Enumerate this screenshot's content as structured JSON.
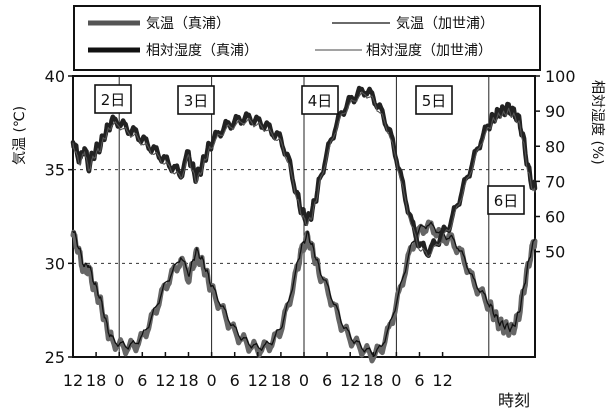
{
  "chart_data": {
    "type": "line",
    "title": "",
    "xlabel": "時刻",
    "ylabel_left": "気温 (℃)",
    "ylabel_right": "相対湿度 (%)",
    "ylim_left": [
      25,
      40
    ],
    "ylim_right": [
      20,
      100
    ],
    "yticks_left": [
      25,
      30,
      35,
      40
    ],
    "yticks_right": [
      50,
      60,
      70,
      80,
      90,
      100
    ],
    "x_hours_range": [
      12,
      132
    ],
    "xtick_labels": [
      "12",
      "18",
      "0",
      "6",
      "12",
      "18",
      "0",
      "6",
      "12",
      "18",
      "0",
      "6",
      "12",
      "18",
      "0",
      "6",
      "12"
    ],
    "grid": "dotted horizontal at 30 and 35 ℃",
    "legend": {
      "placement": "top",
      "entries": [
        "気温（真浦）",
        "気温（加世浦）",
        "相対湿度（真浦）",
        "相対湿度（加世浦）"
      ]
    },
    "day_labels": [
      {
        "text": "2日",
        "hour": 24
      },
      {
        "text": "3日",
        "hour": 48
      },
      {
        "text": "4日",
        "hour": 72
      },
      {
        "text": "5日",
        "hour": 96
      },
      {
        "text": "6日",
        "hour": 120
      }
    ],
    "series": [
      {
        "name": "気温（真浦）",
        "axis": "left",
        "x": [
          12,
          13,
          14,
          15,
          16,
          17,
          18,
          19,
          20,
          21,
          22,
          24,
          26,
          28,
          30,
          32,
          34,
          36,
          38,
          40,
          42,
          43,
          44,
          45,
          46,
          47,
          48,
          50,
          52,
          54,
          56,
          58,
          60,
          62,
          64,
          66,
          68,
          70,
          71,
          72,
          73,
          74,
          75,
          76,
          78,
          80,
          82,
          84,
          86,
          88,
          90,
          92,
          94,
          96,
          98,
          100,
          102,
          104,
          106,
          108,
          110,
          112,
          114,
          116,
          118,
          120,
          121,
          122,
          123,
          124,
          125,
          126,
          127,
          128,
          129,
          130,
          131,
          132
        ],
        "values": [
          31.5,
          31.0,
          30.2,
          29.5,
          29.8,
          29.0,
          28.5,
          28.0,
          27.2,
          26.4,
          25.9,
          25.6,
          25.5,
          25.6,
          26.0,
          26.8,
          27.8,
          28.8,
          29.5,
          30.2,
          29.2,
          29.8,
          30.5,
          30.2,
          29.8,
          29.2,
          28.6,
          27.8,
          27.0,
          26.3,
          25.9,
          25.6,
          25.4,
          25.5,
          25.8,
          26.5,
          27.8,
          29.5,
          30.4,
          31.0,
          31.4,
          30.8,
          30.2,
          29.5,
          28.6,
          27.6,
          26.6,
          26.0,
          25.6,
          25.3,
          25.1,
          25.4,
          26.4,
          27.8,
          29.4,
          30.9,
          31.7,
          32.0,
          31.8,
          31.4,
          31.3,
          30.8,
          30.0,
          29.0,
          28.4,
          27.8,
          27.4,
          27.0,
          26.7,
          26.6,
          26.5,
          26.4,
          26.8,
          27.4,
          28.5,
          29.6,
          30.6,
          31.2
        ]
      },
      {
        "name": "気温（加世浦）",
        "axis": "left",
        "x": [
          12,
          13,
          14,
          15,
          16,
          17,
          18,
          19,
          20,
          21,
          22,
          24,
          26,
          28,
          30,
          32,
          34,
          36,
          38,
          40,
          42,
          43,
          44,
          45,
          46,
          47,
          48,
          50,
          52,
          54,
          56,
          58,
          60,
          62,
          64,
          66,
          68,
          70,
          71,
          72,
          73,
          74,
          75,
          76,
          78,
          80,
          82,
          84,
          86,
          88,
          90,
          92,
          94,
          96,
          98,
          100,
          102,
          104,
          106,
          108,
          110,
          112,
          114,
          116,
          118,
          120,
          121,
          122,
          123,
          124,
          125,
          126,
          127,
          128,
          129,
          130,
          131,
          132
        ],
        "values": [
          31.8,
          31.2,
          30.5,
          29.8,
          30.0,
          29.3,
          28.7,
          28.2,
          27.4,
          26.5,
          26.0,
          25.7,
          25.6,
          25.7,
          26.1,
          26.9,
          27.9,
          28.9,
          29.6,
          30.4,
          29.4,
          30.0,
          30.7,
          30.4,
          30.0,
          29.4,
          28.8,
          28.0,
          27.2,
          26.5,
          26.0,
          25.7,
          25.5,
          25.6,
          25.9,
          26.6,
          27.9,
          29.7,
          30.6,
          31.2,
          31.6,
          31.0,
          30.4,
          29.7,
          28.8,
          27.8,
          26.8,
          26.1,
          25.7,
          25.4,
          25.2,
          25.5,
          26.5,
          27.9,
          29.5,
          31.0,
          31.8,
          32.1,
          31.9,
          31.5,
          31.4,
          30.9,
          30.1,
          29.1,
          28.5,
          27.9,
          27.5,
          27.1,
          26.8,
          26.7,
          26.6,
          26.5,
          26.9,
          27.5,
          28.6,
          29.7,
          30.7,
          31.3
        ]
      },
      {
        "name": "相対湿度（真浦）",
        "axis": "right",
        "x": [
          12,
          13,
          14,
          15,
          16,
          17,
          18,
          19,
          20,
          21,
          22,
          24,
          26,
          28,
          30,
          32,
          34,
          36,
          38,
          40,
          42,
          43,
          44,
          45,
          46,
          47,
          48,
          50,
          52,
          54,
          56,
          58,
          60,
          62,
          64,
          66,
          68,
          70,
          71,
          72,
          73,
          74,
          75,
          76,
          78,
          80,
          82,
          84,
          86,
          88,
          90,
          92,
          94,
          96,
          98,
          100,
          102,
          104,
          106,
          108,
          110,
          112,
          114,
          116,
          118,
          120,
          121,
          122,
          123,
          124,
          125,
          126,
          127,
          128,
          129,
          130,
          131,
          132
        ],
        "values": [
          82,
          78,
          76,
          80,
          74,
          77,
          79,
          80,
          83,
          85,
          87,
          87,
          85,
          84,
          82,
          80,
          78,
          76,
          74,
          72,
          78,
          74,
          71,
          73,
          76,
          79,
          81,
          84,
          86,
          87,
          88,
          88,
          87,
          86,
          84,
          82,
          76,
          67,
          63,
          60,
          59,
          61,
          65,
          70,
          78,
          85,
          90,
          93,
          95,
          96,
          94,
          90,
          85,
          77,
          67,
          58,
          52,
          50,
          52,
          55,
          58,
          64,
          70,
          76,
          82,
          86,
          88,
          89,
          90,
          90,
          91,
          90,
          89,
          87,
          82,
          75,
          70,
          68
        ]
      },
      {
        "name": "相対湿度（加世浦）",
        "axis": "right",
        "x": [
          12,
          13,
          14,
          15,
          16,
          17,
          18,
          19,
          20,
          21,
          22,
          24,
          26,
          28,
          30,
          32,
          34,
          36,
          38,
          40,
          42,
          43,
          44,
          45,
          46,
          47,
          48,
          50,
          52,
          54,
          56,
          58,
          60,
          62,
          64,
          66,
          68,
          70,
          71,
          72,
          73,
          74,
          75,
          76,
          78,
          80,
          82,
          84,
          86,
          88,
          90,
          92,
          94,
          96,
          98,
          100,
          102,
          104,
          106,
          108,
          110,
          112,
          114,
          116,
          118,
          120,
          121,
          122,
          123,
          124,
          125,
          126,
          127,
          128,
          129,
          130,
          131,
          132
        ],
        "values": [
          81,
          77,
          75,
          79,
          73,
          76,
          78,
          79,
          82,
          84,
          86,
          86,
          84,
          83,
          81,
          79,
          77,
          75,
          73,
          71,
          77,
          73,
          70,
          72,
          75,
          78,
          80,
          83,
          85,
          86,
          87,
          87,
          86,
          85,
          83,
          81,
          75,
          66,
          62,
          59,
          58,
          60,
          64,
          69,
          77,
          84,
          89,
          92,
          94,
          95,
          93,
          89,
          84,
          76,
          66,
          57,
          51,
          49,
          51,
          54,
          57,
          63,
          69,
          75,
          81,
          85,
          87,
          88,
          89,
          89,
          90,
          89,
          88,
          86,
          81,
          74,
          69,
          67
        ]
      }
    ]
  }
}
